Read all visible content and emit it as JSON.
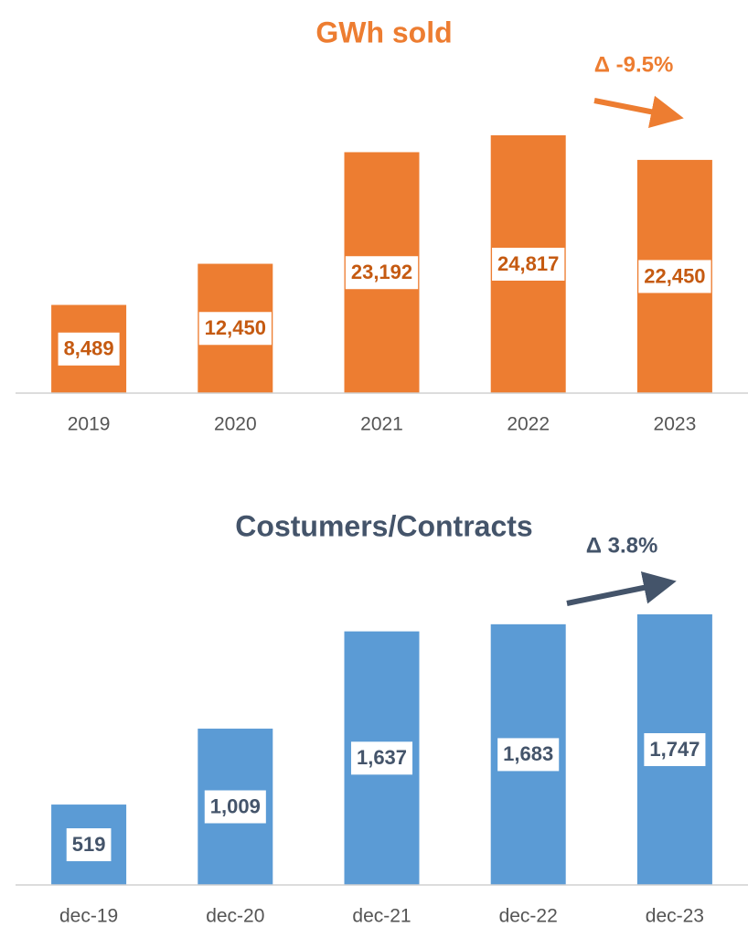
{
  "chart_data": [
    {
      "type": "bar",
      "title": "GWh sold",
      "annotation": "Δ -9.5%",
      "categories": [
        "2019",
        "2020",
        "2021",
        "2022",
        "2023"
      ],
      "values": [
        8489,
        12450,
        23192,
        24817,
        22450
      ],
      "value_labels": [
        "8,489",
        "12,450",
        "23,192",
        "24,817",
        "22,450"
      ],
      "color": "#ED7D31",
      "text_color": "#C55A11"
    },
    {
      "type": "bar",
      "title": "Costumers/Contracts",
      "annotation": "Δ 3.8%",
      "categories": [
        "dec-19",
        "dec-20",
        "dec-21",
        "dec-22",
        "dec-23"
      ],
      "values": [
        519,
        1009,
        1637,
        1683,
        1747
      ],
      "value_labels": [
        "519",
        "1,009",
        "1,637",
        "1,683",
        "1,747"
      ],
      "color": "#5B9BD5",
      "text_color": "#44546A"
    }
  ]
}
